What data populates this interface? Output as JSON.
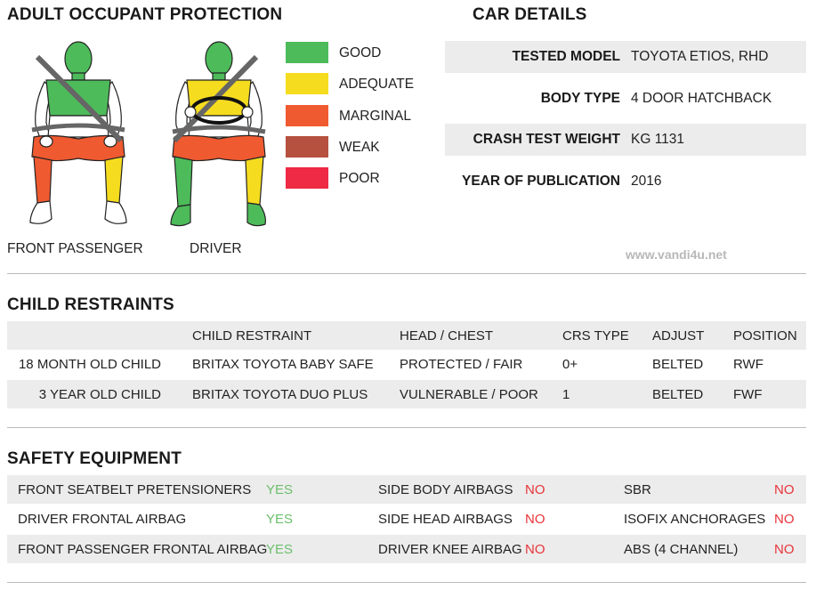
{
  "adult": {
    "title": "ADULT OCCUPANT PROTECTION",
    "front_passenger_label": "FRONT PASSENGER",
    "driver_label": "DRIVER",
    "legend": [
      {
        "label": "GOOD",
        "color": "#4dbb5a"
      },
      {
        "label": "ADEQUATE",
        "color": "#f5dc1f"
      },
      {
        "label": "MARGINAL",
        "color": "#f05a30"
      },
      {
        "label": "WEAK",
        "color": "#b5513e"
      },
      {
        "label": "POOR",
        "color": "#ee2a44"
      }
    ]
  },
  "car": {
    "title": "CAR DETAILS",
    "rows": [
      {
        "key": "TESTED MODEL",
        "value": "TOYOTA ETIOS, RHD"
      },
      {
        "key": "BODY TYPE",
        "value": "4 DOOR HATCHBACK"
      },
      {
        "key": "CRASH TEST WEIGHT",
        "value": "KG 1131"
      },
      {
        "key": "YEAR OF PUBLICATION",
        "value": "2016"
      }
    ]
  },
  "watermark": "www.vandi4u.net",
  "child": {
    "title": "CHILD RESTRAINTS",
    "headers": [
      "",
      "CHILD RESTRAINT",
      "HEAD / CHEST",
      "CRS TYPE",
      "ADJUST",
      "POSITION"
    ],
    "rows": [
      [
        "18 MONTH OLD CHILD",
        "BRITAX TOYOTA BABY SAFE",
        "PROTECTED / FAIR",
        "0+",
        "BELTED",
        "RWF"
      ],
      [
        "3 YEAR OLD CHILD",
        "BRITAX TOYOTA DUO PLUS",
        "VULNERABLE / POOR",
        "1",
        "BELTED",
        "FWF"
      ]
    ]
  },
  "safety": {
    "title": "SAFETY EQUIPMENT",
    "rows": [
      [
        {
          "label": "FRONT SEATBELT PRETENSIONERS",
          "value": "YES"
        },
        {
          "label": "SIDE BODY AIRBAGS",
          "value": "NO"
        },
        {
          "label": "SBR",
          "value": "NO"
        }
      ],
      [
        {
          "label": "DRIVER FRONTAL AIRBAG",
          "value": "YES"
        },
        {
          "label": "SIDE HEAD AIRBAGS",
          "value": "NO"
        },
        {
          "label": "ISOFIX ANCHORAGES",
          "value": "NO"
        }
      ],
      [
        {
          "label": "FRONT PASSENGER FRONTAL AIRBAG",
          "value": "YES"
        },
        {
          "label": "DRIVER KNEE AIRBAG",
          "value": "NO"
        },
        {
          "label": "ABS (4 CHANNEL)",
          "value": "NO"
        }
      ]
    ]
  }
}
